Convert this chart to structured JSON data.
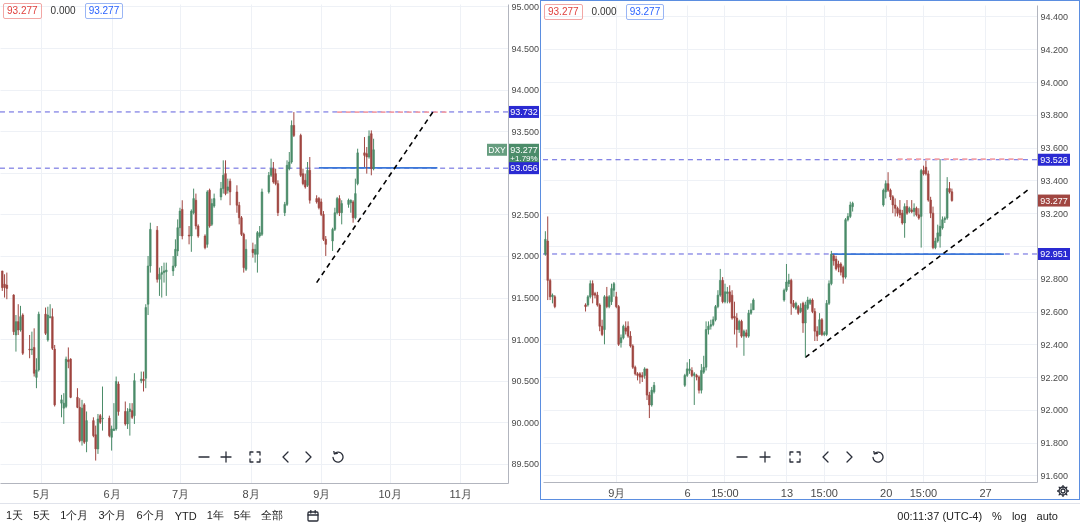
{
  "chart_data": [
    {
      "type": "candlestick",
      "x": [
        "--04-14",
        "--04-15",
        "--04-16",
        "--04-19",
        "--04-20",
        "--04-21",
        "--04-22",
        "--04-23",
        "--04-26",
        "--04-27",
        "--04-28",
        "--04-29",
        "--04-30",
        "--05-03",
        "--05-04",
        "--05-05",
        "--05-06",
        "--05-07",
        "--05-10",
        "--05-11",
        "--05-12",
        "--05-13",
        "--05-14",
        "--05-17",
        "--05-18",
        "--05-19",
        "--05-20",
        "--05-21",
        "--05-24",
        "--05-25",
        "--05-26",
        "--05-27",
        "--05-28",
        "--05-31",
        "--06-01",
        "--06-02",
        "--06-03",
        "--06-04",
        "--06-07",
        "--06-08",
        "--06-09",
        "--06-10",
        "--06-11",
        "--06-14",
        "--06-15",
        "--06-16",
        "--06-17",
        "--06-18",
        "--06-21",
        "--06-22",
        "--06-23",
        "--06-24",
        "--06-25",
        "--06-28",
        "--06-29",
        "--06-30",
        "--07-01",
        "--07-02",
        "--07-05",
        "--07-06",
        "--07-07",
        "--07-08",
        "--07-09",
        "--07-12",
        "--07-13",
        "--07-14",
        "--07-15",
        "--07-16",
        "--07-19",
        "--07-20",
        "--07-21",
        "--07-22",
        "--07-23",
        "--07-26",
        "--07-27",
        "--07-28",
        "--07-29",
        "--07-30",
        "--08-02",
        "--08-03",
        "--08-04",
        "--08-05",
        "--08-06",
        "--08-09",
        "--08-10",
        "--08-11",
        "--08-12",
        "--08-13",
        "--08-16",
        "--08-17",
        "--08-18",
        "--08-19",
        "--08-20",
        "--08-23",
        "--08-24",
        "--08-25",
        "--08-26",
        "--08-27",
        "--08-30",
        "--08-31",
        "--09-01",
        "--09-02",
        "--09-03",
        "--09-06",
        "--09-07",
        "--09-08",
        "--09-09",
        "--09-10",
        "--09-13",
        "--09-14",
        "--09-15",
        "--09-16",
        "--09-17",
        "--09-20",
        "--09-21",
        "--09-22",
        "--09-23",
        "--09-24"
      ],
      "ohlc": [
        [
          91.82,
          91.82,
          91.58,
          91.62
        ],
        [
          91.66,
          91.78,
          91.5,
          91.62
        ],
        [
          91.65,
          91.8,
          91.48,
          91.61
        ],
        [
          91.53,
          91.54,
          91.05,
          91.09
        ],
        [
          91.05,
          91.29,
          90.85,
          91.21
        ],
        [
          91.21,
          91.42,
          91.05,
          91.11
        ],
        [
          91.11,
          91.4,
          91.09,
          91.27
        ],
        [
          91.29,
          91.31,
          90.81,
          90.83
        ],
        [
          90.88,
          91.05,
          90.77,
          90.87
        ],
        [
          90.87,
          91.09,
          90.81,
          90.88
        ],
        [
          90.9,
          91.13,
          90.55,
          90.59
        ],
        [
          90.54,
          90.77,
          90.41,
          90.63
        ],
        [
          90.63,
          91.33,
          90.61,
          91.3
        ],
        [
          91.3,
          91.38,
          91.05,
          91.07
        ],
        [
          90.99,
          91.39,
          90.97,
          91.29
        ],
        [
          91.26,
          91.42,
          91.25,
          91.27
        ],
        [
          91.27,
          91.37,
          90.87,
          90.89
        ],
        [
          90.88,
          90.93,
          90.19,
          90.21
        ],
        [
          90.23,
          90.33,
          90.06,
          90.27
        ],
        [
          90.17,
          90.35,
          89.98,
          90.23
        ],
        [
          90.19,
          90.79,
          90.17,
          90.76
        ],
        [
          90.75,
          90.9,
          90.65,
          90.73
        ],
        [
          90.76,
          90.77,
          90.29,
          90.3
        ],
        [
          90.3,
          90.41,
          90.17,
          90.18
        ],
        [
          90.18,
          90.29,
          89.76,
          89.78
        ],
        [
          89.78,
          90.27,
          89.72,
          90.17
        ],
        [
          90.21,
          90.23,
          89.74,
          89.76
        ],
        [
          89.77,
          90.13,
          89.64,
          90.02
        ],
        [
          90.02,
          90.06,
          89.82,
          89.84
        ],
        [
          89.85,
          89.96,
          89.54,
          89.68
        ],
        [
          89.68,
          90.1,
          89.62,
          90.04
        ],
        [
          90.08,
          90.1,
          89.98,
          90.0
        ],
        [
          90.04,
          90.43,
          89.9,
          90.05
        ],
        [
          90.05,
          90.08,
          89.82,
          89.84
        ],
        [
          89.82,
          89.96,
          89.66,
          89.92
        ],
        [
          89.9,
          90.23,
          89.9,
          89.92
        ],
        [
          89.92,
          90.55,
          89.9,
          90.49
        ],
        [
          90.46,
          90.49,
          90.08,
          90.13
        ],
        [
          90.13,
          90.25,
          89.96,
          89.98
        ],
        [
          89.98,
          90.17,
          89.92,
          90.13
        ],
        [
          90.13,
          90.23,
          89.84,
          90.16
        ],
        [
          90.14,
          90.23,
          90.04,
          90.06
        ],
        [
          90.08,
          90.59,
          89.98,
          90.5
        ],
        [
          90.5,
          90.61,
          90.47,
          90.52
        ],
        [
          90.52,
          90.61,
          90.37,
          90.5
        ],
        [
          90.53,
          91.42,
          90.41,
          91.38
        ],
        [
          91.42,
          92.0,
          91.29,
          91.88
        ],
        [
          91.88,
          92.4,
          91.8,
          92.32
        ],
        [
          92.31,
          92.36,
          91.68,
          91.72
        ],
        [
          91.72,
          91.86,
          91.52,
          91.78
        ],
        [
          91.78,
          91.88,
          91.5,
          91.8
        ],
        [
          91.8,
          91.92,
          91.68,
          91.82
        ],
        [
          91.81,
          91.92,
          91.52,
          91.83
        ],
        [
          91.82,
          92.0,
          91.76,
          91.88
        ],
        [
          91.88,
          92.2,
          91.86,
          92.08
        ],
        [
          92.06,
          92.44,
          92.0,
          92.34
        ],
        [
          92.34,
          92.58,
          92.24,
          92.54
        ],
        [
          92.56,
          92.67,
          92.2,
          92.24
        ],
        [
          92.25,
          92.36,
          92.14,
          92.24
        ],
        [
          92.24,
          92.56,
          92.05,
          92.54
        ],
        [
          92.52,
          92.81,
          92.5,
          92.69
        ],
        [
          92.67,
          92.75,
          92.32,
          92.36
        ],
        [
          92.36,
          92.38,
          92.22,
          92.24
        ],
        [
          92.24,
          92.26,
          92.08,
          92.1
        ],
        [
          92.14,
          92.79,
          92.1,
          92.77
        ],
        [
          92.79,
          92.81,
          92.34,
          92.36
        ],
        [
          92.38,
          92.69,
          92.36,
          92.63
        ],
        [
          92.6,
          92.75,
          92.58,
          92.69
        ],
        [
          92.71,
          92.89,
          92.67,
          92.81
        ],
        [
          92.81,
          93.15,
          92.75,
          92.97
        ],
        [
          92.99,
          93.15,
          92.73,
          92.75
        ],
        [
          92.79,
          92.93,
          92.75,
          92.83
        ],
        [
          92.9,
          92.93,
          92.61,
          92.77
        ],
        [
          92.77,
          92.85,
          92.52,
          92.61
        ],
        [
          92.61,
          92.65,
          92.38,
          92.46
        ],
        [
          92.46,
          92.48,
          92.24,
          92.26
        ],
        [
          92.26,
          92.28,
          91.8,
          91.86
        ],
        [
          91.84,
          92.2,
          91.82,
          92.08
        ],
        [
          92.08,
          92.16,
          91.98,
          92.04
        ],
        [
          92.02,
          92.14,
          91.92,
          92.08
        ],
        [
          92.02,
          92.3,
          91.8,
          92.28
        ],
        [
          92.24,
          92.36,
          92.22,
          92.28
        ],
        [
          92.26,
          92.81,
          92.24,
          92.77
        ],
        [
          92.77,
          93.01,
          92.75,
          92.97
        ],
        [
          92.97,
          93.17,
          92.95,
          93.05
        ],
        [
          93.05,
          93.13,
          92.87,
          92.89
        ],
        [
          92.99,
          93.05,
          92.85,
          92.87
        ],
        [
          92.87,
          92.91,
          92.48,
          92.52
        ],
        [
          92.52,
          92.65,
          92.48,
          92.62
        ],
        [
          92.62,
          93.15,
          92.6,
          93.09
        ],
        [
          93.05,
          93.25,
          93.03,
          93.13
        ],
        [
          93.13,
          93.63,
          93.11,
          93.57
        ],
        [
          93.57,
          93.73,
          93.43,
          93.45
        ],
        [
          93.45,
          93.47,
          92.95,
          92.97
        ],
        [
          92.99,
          93.05,
          92.85,
          92.87
        ],
        [
          92.91,
          92.99,
          92.81,
          92.83
        ],
        [
          92.85,
          93.13,
          92.83,
          93.03
        ],
        [
          93.03,
          93.19,
          92.63,
          92.67
        ],
        [
          92.69,
          92.73,
          92.63,
          92.65
        ],
        [
          92.69,
          92.71,
          92.56,
          92.58
        ],
        [
          92.65,
          92.69,
          92.48,
          92.5
        ],
        [
          92.5,
          92.54,
          92.18,
          92.2
        ],
        [
          92.2,
          92.24,
          92.0,
          92.14
        ],
        [
          92.18,
          92.34,
          92.06,
          92.32
        ],
        [
          92.32,
          92.58,
          92.3,
          92.52
        ],
        [
          92.52,
          92.71,
          92.5,
          92.69
        ],
        [
          92.69,
          92.73,
          92.48,
          92.52
        ],
        [
          92.52,
          92.67,
          92.38,
          92.63
        ],
        [
          92.62,
          92.69,
          92.58,
          92.67
        ],
        [
          92.64,
          92.68,
          92.52,
          92.67
        ],
        [
          92.65,
          92.67,
          92.4,
          92.46
        ],
        [
          92.46,
          92.93,
          92.44,
          92.75
        ],
        [
          92.87,
          93.29,
          92.85,
          93.24
        ],
        [
          93.24,
          93.43,
          93.07,
          93.21
        ],
        [
          93.23,
          93.31,
          92.99,
          93.19
        ],
        [
          93.19,
          93.51,
          93.17,
          93.44
        ],
        [
          93.47,
          93.51,
          92.97,
          93.05
        ],
        [
          93.05,
          93.41,
          93.03,
          93.277
        ]
      ],
      "colors": [
        "#a04641",
        "#a04641",
        "#a04641",
        "#a04641",
        "#4b8c69",
        "#a04641",
        "#4b8c69",
        "#a04641",
        "#a04641",
        "#4b8c69",
        "#a04641",
        "#4b8c69",
        "#4b8c69",
        "#a04641",
        "#4b8c69",
        "#4b8c69",
        "#a04641",
        "#a04641",
        "#4b8c69",
        "#4b8c69",
        "#4b8c69",
        "#a04641",
        "#a04641",
        "#a04641",
        "#a04641",
        "#4b8c69",
        "#a04641",
        "#4b8c69",
        "#a04641",
        "#a04641",
        "#4b8c69",
        "#a04641",
        "#4b8c69",
        "#a04641",
        "#4b8c69",
        "#4b8c69",
        "#4b8c69",
        "#a04641",
        "#a04641",
        "#4b8c69",
        "#4b8c69",
        "#a04641",
        "#4b8c69",
        "#4b8c69",
        "#a04641",
        "#4b8c69",
        "#4b8c69",
        "#4b8c69",
        "#a04641",
        "#4b8c69",
        "#4b8c69",
        "#4b8c69",
        "#4b8c69",
        "#4b8c69",
        "#4b8c69",
        "#4b8c69",
        "#4b8c69",
        "#a04641",
        "#a04641",
        "#4b8c69",
        "#4b8c69",
        "#a04641",
        "#a04641",
        "#a04641",
        "#4b8c69",
        "#a04641",
        "#4b8c69",
        "#4b8c69",
        "#4b8c69",
        "#4b8c69",
        "#a04641",
        "#4b8c69",
        "#a04641",
        "#a04641",
        "#a04641",
        "#a04641",
        "#a04641",
        "#4b8c69",
        "#a04641",
        "#4b8c69",
        "#4b8c69",
        "#4b8c69",
        "#4b8c69",
        "#4b8c69",
        "#4b8c69",
        "#a04641",
        "#a04641",
        "#a04641",
        "#4b8c69",
        "#4b8c69",
        "#4b8c69",
        "#4b8c69",
        "#a04641",
        "#a04641",
        "#a04641",
        "#a04641",
        "#4b8c69",
        "#a04641",
        "#a04641",
        "#a04641",
        "#a04641",
        "#a04641",
        "#a04641",
        "#4b8c69",
        "#4b8c69",
        "#4b8c69",
        "#a04641",
        "#4b8c69",
        "#4b8c69",
        "#4b8c69",
        "#a04641",
        "#4b8c69",
        "#4b8c69",
        "#a04641",
        "#a04641",
        "#4b8c69",
        "#a04641",
        "#4b8c69"
      ],
      "xlim": [
        "--04-13",
        "--11-22"
      ],
      "xticks": [
        {
          "value": "--05-01",
          "label": "5月"
        },
        {
          "value": "--06-01",
          "label": "6月"
        },
        {
          "value": "--07-01",
          "label": "7月"
        },
        {
          "value": "--08-01",
          "label": "8月"
        },
        {
          "value": "--09-01",
          "label": "9月"
        },
        {
          "value": "--10-01",
          "label": "10月"
        },
        {
          "value": "--11-01",
          "label": "11月"
        }
      ],
      "ylim": [
        89.27,
        95.03
      ],
      "yticks": [
        {
          "value": 89.5,
          "label": "89.500"
        },
        {
          "value": 90,
          "label": "90.000"
        },
        {
          "value": 90.5,
          "label": "90.500"
        },
        {
          "value": 91,
          "label": "91.000"
        },
        {
          "value": 91.5,
          "label": "91.500"
        },
        {
          "value": 92,
          "label": "92.000"
        },
        {
          "value": 92.5,
          "label": "92.500"
        },
        {
          "value": 93,
          "label": null
        },
        {
          "value": 93.5,
          "label": "93.500"
        },
        {
          "value": 94,
          "label": "94.000"
        },
        {
          "value": 94.5,
          "label": "94.500"
        },
        {
          "value": 95,
          "label": "95.000"
        }
      ],
      "grid": true,
      "ref_lines": [
        {
          "axis": "y",
          "value": 93.732,
          "label": "93.732",
          "color": "#2a2ad2",
          "line_style": "dashed"
        },
        {
          "axis": "y",
          "value": 93.056,
          "label": "93.056",
          "color": "#2a2ad2",
          "line_style": "dashed"
        }
      ],
      "series": [
        {
          "type": "line",
          "x": [
            "--09-08",
            "--10-26"
          ],
          "values": [
            93.73,
            93.73
          ],
          "color": "#f2a0a8",
          "line_style": "dashed"
        },
        {
          "type": "line",
          "x": [
            "--08-31",
            "--10-22"
          ],
          "values": [
            93.06,
            93.06
          ],
          "color": "#3c78d8",
          "line_style": "solid"
        },
        {
          "type": "line",
          "x": [
            "--08-30",
            "--10-20"
          ],
          "values": [
            91.68,
            93.73
          ],
          "color": "#000000",
          "line_style": "dashed"
        }
      ],
      "annotations": [
        "93.277",
        "0.000",
        "93.277",
        "DXY",
        "93.277",
        "+1.79%",
        "1天",
        "5天",
        "1个月",
        "3个月",
        "6个月",
        "YTD",
        "1年",
        "5年",
        "全部"
      ]
    },
    {
      "type": "candlestick",
      "x": [
        "--08-27T00:00",
        "--08-27T04:00",
        "--08-27T08:00",
        "--08-27T12:00",
        "--08-27T16:00",
        "--08-29T20:00",
        "--08-30T00:00",
        "--08-30T04:00",
        "--08-30T08:00",
        "--08-30T12:00",
        "--08-30T16:00",
        "--08-30T20:00",
        "--08-31T00:00",
        "--08-31T04:00",
        "--08-31T08:00",
        "--08-31T12:00",
        "--08-31T16:00",
        "--08-31T20:00",
        "--09-01T00:00",
        "--09-01T04:00",
        "--09-01T08:00",
        "--09-01T12:00",
        "--09-01T16:00",
        "--09-01T20:00",
        "--09-02T00:00",
        "--09-02T04:00",
        "--09-02T08:00",
        "--09-02T12:00",
        "--09-02T16:00",
        "--09-02T20:00",
        "--09-03T00:00",
        "--09-03T04:00",
        "--09-03T08:00",
        "--09-03T12:00",
        "--09-03T16:00",
        "--09-05T20:00",
        "--09-06T00:00",
        "--09-06T04:00",
        "--09-06T08:00",
        "--09-06T12:00",
        "--09-06T16:00",
        "--09-06T20:00",
        "--09-07T00:00",
        "--09-07T04:00",
        "--09-07T08:00",
        "--09-07T12:00",
        "--09-07T16:00",
        "--09-07T20:00",
        "--09-08T00:00",
        "--09-08T04:00",
        "--09-08T08:00",
        "--09-08T12:00",
        "--09-08T16:00",
        "--09-08T20:00",
        "--09-09T00:00",
        "--09-09T04:00",
        "--09-09T08:00",
        "--09-09T12:00",
        "--09-09T16:00",
        "--09-09T20:00",
        "--09-10T00:00",
        "--09-10T04:00",
        "--09-10T08:00",
        "--09-10T12:00",
        "--09-10T16:00",
        "--09-12T20:00",
        "--09-13T00:00",
        "--09-13T04:00",
        "--09-13T08:00",
        "--09-13T12:00",
        "--09-13T16:00",
        "--09-13T20:00",
        "--09-14T00:00",
        "--09-14T04:00",
        "--09-14T08:00",
        "--09-14T12:00",
        "--09-14T16:00",
        "--09-14T20:00",
        "--09-15T00:00",
        "--09-15T04:00",
        "--09-15T08:00",
        "--09-15T12:00",
        "--09-15T16:00",
        "--09-15T20:00",
        "--09-16T00:00",
        "--09-16T04:00",
        "--09-16T08:00",
        "--09-16T12:00",
        "--09-16T16:00",
        "--09-16T20:00",
        "--09-17T00:00",
        "--09-17T04:00",
        "--09-17T08:00",
        "--09-17T12:00",
        "--09-17T16:00",
        "--09-19T20:00",
        "--09-20T00:00",
        "--09-20T04:00",
        "--09-20T08:00",
        "--09-20T12:00",
        "--09-20T16:00",
        "--09-20T20:00",
        "--09-21T00:00",
        "--09-21T04:00",
        "--09-21T08:00",
        "--09-21T12:00",
        "--09-21T16:00",
        "--09-21T20:00",
        "--09-22T00:00",
        "--09-22T04:00",
        "--09-22T08:00",
        "--09-22T12:00",
        "--09-22T16:00",
        "--09-22T20:00",
        "--09-23T00:00",
        "--09-23T04:00",
        "--09-23T08:00",
        "--09-23T12:00",
        "--09-23T16:00",
        "--09-23T20:00",
        "--09-24T00:00",
        "--09-24T04:00",
        "--09-24T08:00",
        "--09-24T12:00",
        "--09-24T16:00"
      ],
      "ohlc": [
        [
          92.95,
          93.09,
          92.94,
          93.04
        ],
        [
          93.03,
          93.18,
          92.67,
          92.79
        ],
        [
          92.79,
          92.8,
          92.67,
          92.69
        ],
        [
          92.69,
          92.71,
          92.65,
          92.7
        ],
        [
          92.69,
          92.7,
          92.62,
          92.63
        ],
        [
          92.64,
          92.65,
          92.6,
          92.63
        ],
        [
          92.64,
          92.7,
          92.63,
          92.69
        ],
        [
          92.69,
          92.79,
          92.68,
          92.77
        ],
        [
          92.77,
          92.79,
          92.65,
          92.7
        ],
        [
          92.71,
          92.72,
          92.68,
          92.7
        ],
        [
          92.7,
          92.72,
          92.63,
          92.64
        ],
        [
          92.64,
          92.65,
          92.48,
          92.51
        ],
        [
          92.51,
          92.55,
          92.45,
          92.46
        ],
        [
          92.49,
          92.7,
          92.4,
          92.69
        ],
        [
          92.69,
          92.75,
          92.62,
          92.63
        ],
        [
          92.63,
          92.7,
          92.62,
          92.69
        ],
        [
          92.66,
          92.77,
          92.64,
          92.74
        ],
        [
          92.73,
          92.78,
          92.69,
          92.77
        ],
        [
          92.69,
          92.72,
          92.62,
          92.63
        ],
        [
          92.63,
          92.64,
          92.39,
          92.4
        ],
        [
          92.41,
          92.46,
          92.38,
          92.44
        ],
        [
          92.44,
          92.52,
          92.43,
          92.51
        ],
        [
          92.5,
          92.54,
          92.46,
          92.48
        ],
        [
          92.51,
          92.54,
          92.44,
          92.45
        ],
        [
          92.45,
          92.48,
          92.38,
          92.39
        ],
        [
          92.39,
          92.4,
          92.25,
          92.26
        ],
        [
          92.26,
          92.27,
          92.21,
          92.22
        ],
        [
          92.22,
          92.23,
          92.18,
          92.21
        ],
        [
          92.22,
          92.23,
          92.16,
          92.2
        ],
        [
          92.21,
          92.23,
          92.17,
          92.2
        ],
        [
          92.21,
          92.26,
          92.19,
          92.25
        ],
        [
          92.25,
          92.25,
          92.06,
          92.09
        ],
        [
          92.09,
          92.11,
          91.95,
          92.03
        ],
        [
          92.03,
          92.14,
          92.02,
          92.12
        ],
        [
          92.11,
          92.17,
          92.1,
          92.15
        ],
        [
          92.15,
          92.22,
          92.14,
          92.21
        ],
        [
          92.21,
          92.29,
          92.2,
          92.25
        ],
        [
          92.24,
          92.31,
          92.22,
          92.25
        ],
        [
          92.24,
          92.26,
          92.2,
          92.21
        ],
        [
          92.21,
          92.23,
          92.03,
          92.22
        ],
        [
          92.21,
          92.22,
          92.18,
          92.2
        ],
        [
          92.2,
          92.21,
          92.1,
          92.12
        ],
        [
          92.12,
          92.28,
          92.1,
          92.24
        ],
        [
          92.23,
          92.33,
          92.22,
          92.26
        ],
        [
          92.26,
          92.54,
          92.24,
          92.49
        ],
        [
          92.49,
          92.54,
          92.46,
          92.51
        ],
        [
          92.51,
          92.55,
          92.49,
          92.52
        ],
        [
          92.52,
          92.57,
          92.51,
          92.55
        ],
        [
          92.55,
          92.64,
          92.54,
          92.63
        ],
        [
          92.63,
          92.73,
          92.62,
          92.7
        ],
        [
          92.7,
          92.86,
          92.69,
          92.79
        ],
        [
          92.79,
          92.81,
          92.65,
          92.66
        ],
        [
          92.66,
          92.77,
          92.65,
          92.72
        ],
        [
          92.71,
          92.75,
          92.65,
          92.72
        ],
        [
          92.72,
          92.76,
          92.65,
          92.66
        ],
        [
          92.7,
          92.73,
          92.55,
          92.56
        ],
        [
          92.57,
          92.66,
          92.46,
          92.56
        ],
        [
          92.56,
          92.59,
          92.38,
          92.49
        ],
        [
          92.49,
          92.55,
          92.47,
          92.54
        ],
        [
          92.54,
          92.55,
          92.44,
          92.45
        ],
        [
          92.45,
          92.49,
          92.33,
          92.48
        ],
        [
          92.47,
          92.49,
          92.44,
          92.45
        ],
        [
          92.45,
          92.61,
          92.44,
          92.59
        ],
        [
          92.59,
          92.65,
          92.58,
          92.61
        ],
        [
          92.61,
          92.68,
          92.61,
          92.67
        ],
        [
          92.67,
          92.74,
          92.66,
          92.73
        ],
        [
          92.73,
          92.89,
          92.72,
          92.78
        ],
        [
          92.77,
          92.83,
          92.75,
          92.79
        ],
        [
          92.79,
          92.8,
          92.58,
          92.65
        ],
        [
          92.65,
          92.67,
          92.62,
          92.63
        ],
        [
          92.62,
          92.66,
          92.61,
          92.65
        ],
        [
          92.63,
          92.64,
          92.58,
          92.59
        ],
        [
          92.6,
          92.65,
          92.59,
          92.62
        ],
        [
          92.65,
          92.66,
          92.47,
          92.53
        ],
        [
          92.53,
          92.66,
          92.32,
          92.64
        ],
        [
          92.62,
          92.69,
          92.61,
          92.67
        ],
        [
          92.65,
          92.68,
          92.64,
          92.67
        ],
        [
          92.67,
          92.68,
          92.59,
          92.6
        ],
        [
          92.6,
          92.62,
          92.42,
          92.48
        ],
        [
          92.48,
          92.51,
          92.42,
          92.45
        ],
        [
          92.46,
          92.59,
          92.46,
          92.55
        ],
        [
          92.55,
          92.56,
          92.45,
          92.46
        ],
        [
          92.46,
          92.48,
          92.45,
          92.47
        ],
        [
          92.46,
          92.67,
          92.45,
          92.65
        ],
        [
          92.65,
          92.79,
          92.64,
          92.77
        ],
        [
          92.77,
          92.97,
          92.76,
          92.95
        ],
        [
          92.94,
          92.95,
          92.88,
          92.91
        ],
        [
          92.92,
          92.94,
          92.85,
          92.86
        ],
        [
          92.89,
          92.91,
          92.84,
          92.87
        ],
        [
          92.89,
          92.9,
          92.82,
          92.84
        ],
        [
          92.87,
          92.88,
          92.77,
          92.81
        ],
        [
          92.81,
          93.17,
          92.8,
          93.16
        ],
        [
          93.16,
          93.2,
          93.15,
          93.18
        ],
        [
          93.18,
          93.27,
          93.17,
          93.25
        ],
        [
          93.24,
          93.27,
          93.21,
          93.26
        ],
        [
          93.25,
          93.35,
          93.24,
          93.34
        ],
        [
          93.33,
          93.4,
          93.29,
          93.38
        ],
        [
          93.38,
          93.45,
          93.33,
          93.34
        ],
        [
          93.34,
          93.35,
          93.28,
          93.3
        ],
        [
          93.3,
          93.31,
          93.2,
          93.25
        ],
        [
          93.25,
          93.29,
          93.18,
          93.23
        ],
        [
          93.23,
          93.24,
          93.18,
          93.2
        ],
        [
          93.22,
          93.28,
          93.17,
          93.19
        ],
        [
          93.2,
          93.22,
          93.13,
          93.14
        ],
        [
          93.14,
          93.26,
          93.05,
          93.24
        ],
        [
          93.24,
          93.28,
          93.19,
          93.2
        ],
        [
          93.21,
          93.24,
          93.2,
          93.23
        ],
        [
          93.22,
          93.28,
          93.2,
          93.21
        ],
        [
          93.21,
          93.26,
          93.18,
          93.23
        ],
        [
          93.23,
          93.24,
          93.18,
          93.19
        ],
        [
          93.19,
          93.23,
          93.16,
          93.17
        ],
        [
          93.18,
          93.47,
          92.99,
          93.46
        ],
        [
          93.46,
          93.49,
          93.43,
          93.44
        ],
        [
          93.48,
          93.52,
          93.43,
          93.44
        ],
        [
          93.44,
          93.46,
          93.27,
          93.28
        ],
        [
          93.28,
          93.3,
          93.17,
          93.2
        ],
        [
          93.2,
          93.24,
          92.98,
          92.99
        ],
        [
          92.99,
          93.05,
          92.98,
          93.03
        ],
        [
          93.03,
          93.13,
          93.02,
          93.08
        ],
        [
          93.06,
          93.53,
          92.99,
          93.12
        ],
        [
          93.11,
          93.18,
          93.1,
          93.16
        ],
        [
          93.16,
          93.18,
          93.14,
          93.17
        ],
        [
          93.17,
          93.42,
          93.16,
          93.35
        ],
        [
          93.35,
          93.39,
          93.32,
          93.33
        ],
        [
          93.33,
          93.35,
          93.27,
          93.277
        ]
      ],
      "colors": [
        "#4b8c69",
        "#a04641",
        "#a04641",
        "#4b8c69",
        "#a04641",
        "#a04641",
        "#4b8c69",
        "#4b8c69",
        "#a04641",
        "#a04641",
        "#a04641",
        "#a04641",
        "#a04641",
        "#4b8c69",
        "#a04641",
        "#4b8c69",
        "#4b8c69",
        "#4b8c69",
        "#a04641",
        "#a04641",
        "#4b8c69",
        "#4b8c69",
        "#a04641",
        "#a04641",
        "#a04641",
        "#a04641",
        "#a04641",
        "#a04641",
        "#a04641",
        "#a04641",
        "#4b8c69",
        "#a04641",
        "#a04641",
        "#4b8c69",
        "#4b8c69",
        "#4b8c69",
        "#4b8c69",
        "#4b8c69",
        "#a04641",
        "#4b8c69",
        "#a04641",
        "#a04641",
        "#4b8c69",
        "#4b8c69",
        "#4b8c69",
        "#4b8c69",
        "#4b8c69",
        "#4b8c69",
        "#4b8c69",
        "#4b8c69",
        "#4b8c69",
        "#a04641",
        "#4b8c69",
        "#4b8c69",
        "#a04641",
        "#a04641",
        "#a04641",
        "#a04641",
        "#4b8c69",
        "#a04641",
        "#4b8c69",
        "#a04641",
        "#4b8c69",
        "#4b8c69",
        "#4b8c69",
        "#4b8c69",
        "#4b8c69",
        "#4b8c69",
        "#a04641",
        "#a04641",
        "#4b8c69",
        "#a04641",
        "#4b8c69",
        "#a04641",
        "#4b8c69",
        "#4b8c69",
        "#4b8c69",
        "#a04641",
        "#a04641",
        "#a04641",
        "#4b8c69",
        "#a04641",
        "#4b8c69",
        "#4b8c69",
        "#4b8c69",
        "#4b8c69",
        "#a04641",
        "#a04641",
        "#a04641",
        "#a04641",
        "#a04641",
        "#4b8c69",
        "#4b8c69",
        "#4b8c69",
        "#4b8c69",
        "#4b8c69",
        "#4b8c69",
        "#a04641",
        "#a04641",
        "#a04641",
        "#a04641",
        "#a04641",
        "#a04641",
        "#a04641",
        "#4b8c69",
        "#a04641",
        "#4b8c69",
        "#a04641",
        "#4b8c69",
        "#a04641",
        "#a04641",
        "#4b8c69",
        "#a04641",
        "#a04641",
        "#a04641",
        "#a04641",
        "#a04641",
        "#4b8c69",
        "#4b8c69",
        "#4b8c69",
        "#4b8c69",
        "#4b8c69",
        "#4b8c69",
        "#a04641",
        "#a04641"
      ],
      "xlim": [
        "--08-26T20:00",
        "--09-30T16:00"
      ],
      "xticks": [
        {
          "value": "--09-01",
          "label": "9月"
        },
        {
          "value": "--09-06",
          "label": "6"
        },
        {
          "value": "--09-08T15:00",
          "label": "15:00"
        },
        {
          "value": "--09-13",
          "label": "13"
        },
        {
          "value": "--09-15T15:00",
          "label": "15:00"
        },
        {
          "value": "--09-20",
          "label": "20"
        },
        {
          "value": "--09-22T15:00",
          "label": "15:00"
        },
        {
          "value": "--09-27",
          "label": "27"
        }
      ],
      "ylim": [
        91.56,
        94.47
      ],
      "yticks": [
        {
          "value": 91.6,
          "label": "91.600"
        },
        {
          "value": 91.8,
          "label": "91.800"
        },
        {
          "value": 92,
          "label": "92.000"
        },
        {
          "value": 92.2,
          "label": "92.200"
        },
        {
          "value": 92.4,
          "label": "92.400"
        },
        {
          "value": 92.6,
          "label": "92.600"
        },
        {
          "value": 92.8,
          "label": "92.800"
        },
        {
          "value": 93,
          "label": null
        },
        {
          "value": 93.2,
          "label": "93.200"
        },
        {
          "value": 93.4,
          "label": "93.400"
        },
        {
          "value": 93.6,
          "label": "93.600"
        },
        {
          "value": 93.8,
          "label": "93.800"
        },
        {
          "value": 94,
          "label": "94.000"
        },
        {
          "value": 94.2,
          "label": "94.200"
        },
        {
          "value": 94.4,
          "label": "94.400"
        }
      ],
      "grid": true,
      "ref_lines": [
        {
          "axis": "y",
          "value": 93.526,
          "label": "93.526",
          "color": "#2a2ad2",
          "line_style": "dashed"
        },
        {
          "axis": "y",
          "value": 92.951,
          "label": "92.951",
          "color": "#2a2ad2",
          "line_style": "dashed"
        }
      ],
      "series": [
        {
          "type": "line",
          "x": [
            "--09-20T20:00",
            "--09-29T16:00"
          ],
          "values": [
            93.53,
            93.53
          ],
          "color": "#f2a0a8",
          "line_style": "dashed"
        },
        {
          "type": "line",
          "x": [
            "--09-16T04:00",
            "--09-28T08:00"
          ],
          "values": [
            92.95,
            92.95
          ],
          "color": "#3c78d8",
          "line_style": "solid"
        },
        {
          "type": "line",
          "x": [
            "--09-14T08:00",
            "--09-30T00:00"
          ],
          "values": [
            92.32,
            93.34
          ],
          "color": "#000000",
          "line_style": "dashed"
        }
      ],
      "annotations": [
        "93.277",
        "0.000",
        "93.277",
        "93.277",
        "00:11:37 (UTC-4)",
        "%",
        "log",
        "auto"
      ]
    }
  ]
}
